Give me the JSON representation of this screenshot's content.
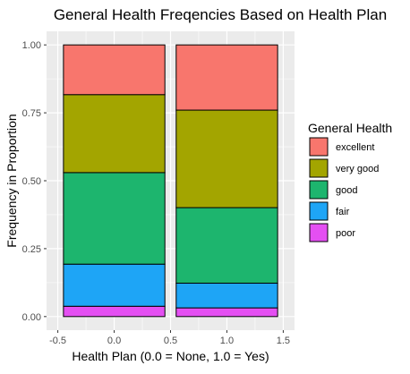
{
  "chart_data": {
    "type": "bar",
    "stacked": true,
    "title": "General Health Freqencies Based on Health Plan",
    "xlabel": "Health Plan (0.0 = None, 1.0 = Yes)",
    "ylabel": "Frequency in Proportion",
    "x_positions": [
      0.0,
      1.0
    ],
    "x_ticks": [
      -0.5,
      0.0,
      0.5,
      1.0,
      1.5
    ],
    "x_tick_labels": [
      "-0.5",
      "0.0",
      "0.5",
      "1.0",
      "1.5"
    ],
    "xlim": [
      -0.6,
      1.6
    ],
    "ylim": [
      -0.05,
      1.05
    ],
    "y_ticks": [
      0,
      0.25,
      0.5,
      0.75,
      1.0
    ],
    "y_tick_labels": [
      "0.00",
      "0.25",
      "0.50",
      "0.75",
      "1.00"
    ],
    "grid": true,
    "legend": {
      "title": "General Health",
      "position": "right"
    },
    "series": [
      {
        "name": "excellent",
        "color": "#F8766D",
        "values": [
          0.183,
          0.24
        ]
      },
      {
        "name": "very good",
        "color": "#A3A500",
        "values": [
          0.287,
          0.359
        ]
      },
      {
        "name": "good",
        "color": "#1DB56E",
        "values": [
          0.337,
          0.278
        ]
      },
      {
        "name": "fair",
        "color": "#1EA5F6",
        "values": [
          0.155,
          0.091
        ]
      },
      {
        "name": "poor",
        "color": "#E44FF2",
        "values": [
          0.038,
          0.032
        ]
      }
    ],
    "bar_width": 0.9
  }
}
